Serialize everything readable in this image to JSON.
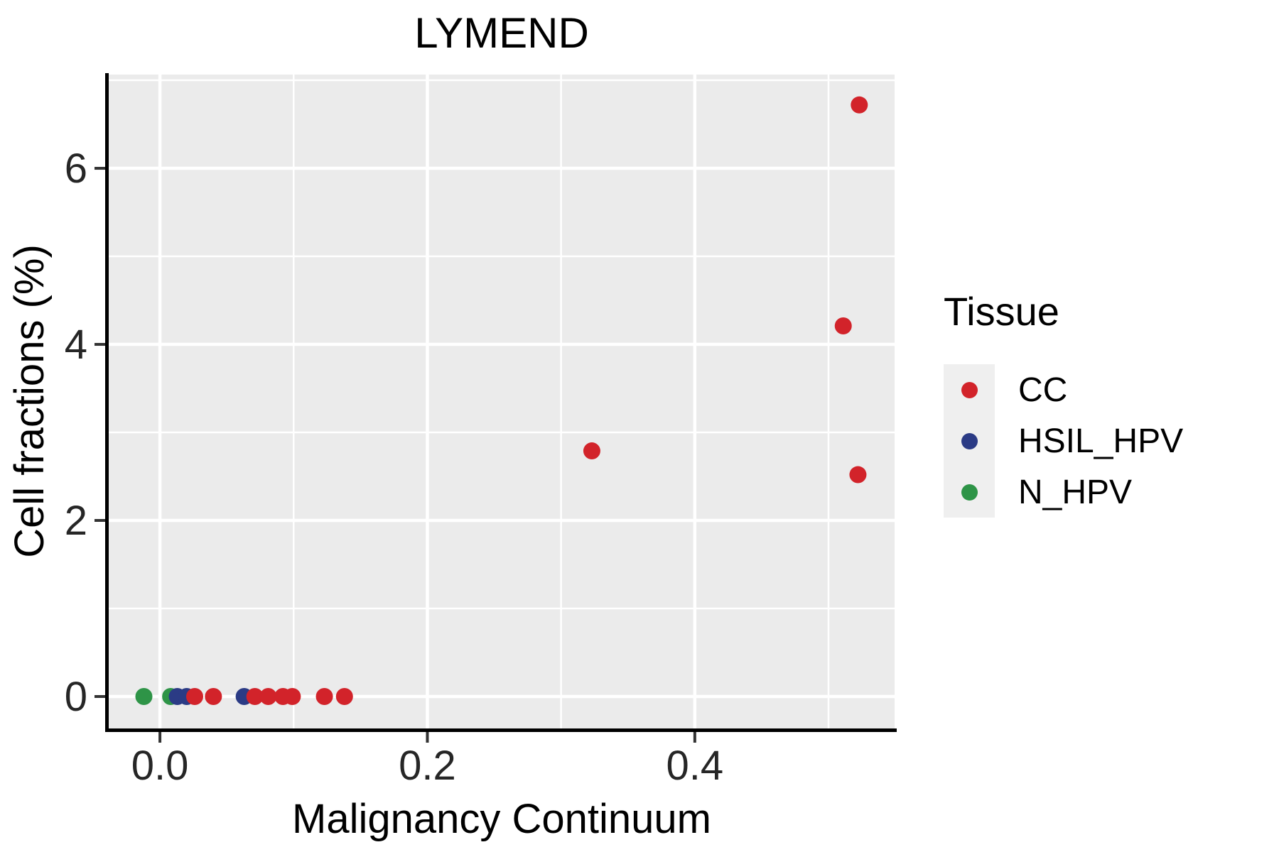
{
  "title": "LYMEND",
  "legend": {
    "title": "Tissue"
  },
  "chart_data": {
    "type": "scatter",
    "title": "LYMEND",
    "xlabel": "Malignancy Continuum",
    "ylabel": "Cell fractions (%)",
    "xlim": [
      -0.0383,
      0.5494
    ],
    "ylim": [
      -0.363,
      7.065
    ],
    "x_ticks": [
      0.0,
      0.2,
      0.4
    ],
    "x_tick_labels": [
      "0.0",
      "0.2",
      "0.4"
    ],
    "y_ticks": [
      0,
      2,
      4,
      6
    ],
    "y_tick_labels": [
      "0",
      "2",
      "4",
      "6"
    ],
    "grid": true,
    "legend_position": "right",
    "legend_title": "Tissue",
    "colors": {
      "panel": "#EBEBEB",
      "grid": "#FFFFFF",
      "axis_line": "#000000",
      "tick_mark": "#333333",
      "tick_label": "#262626",
      "legend_key": "#EFEFEF"
    },
    "series": [
      {
        "name": "CC",
        "color": "#D2232A",
        "points": [
          [
            0.026,
            0
          ],
          [
            0.04,
            0
          ],
          [
            0.071,
            0
          ],
          [
            0.081,
            0
          ],
          [
            0.092,
            0
          ],
          [
            0.099,
            0
          ],
          [
            0.123,
            0
          ],
          [
            0.138,
            0
          ],
          [
            0.323,
            2.79
          ],
          [
            0.511,
            4.21
          ],
          [
            0.522,
            2.52
          ],
          [
            0.523,
            6.72
          ]
        ]
      },
      {
        "name": "HSIL_HPV",
        "color": "#2B3B85",
        "points": [
          [
            0.013,
            0
          ],
          [
            0.02,
            0
          ],
          [
            0.063,
            0
          ]
        ]
      },
      {
        "name": "N_HPV",
        "color": "#2E9447",
        "points": [
          [
            -0.012,
            0
          ],
          [
            0.008,
            0
          ]
        ]
      }
    ]
  }
}
